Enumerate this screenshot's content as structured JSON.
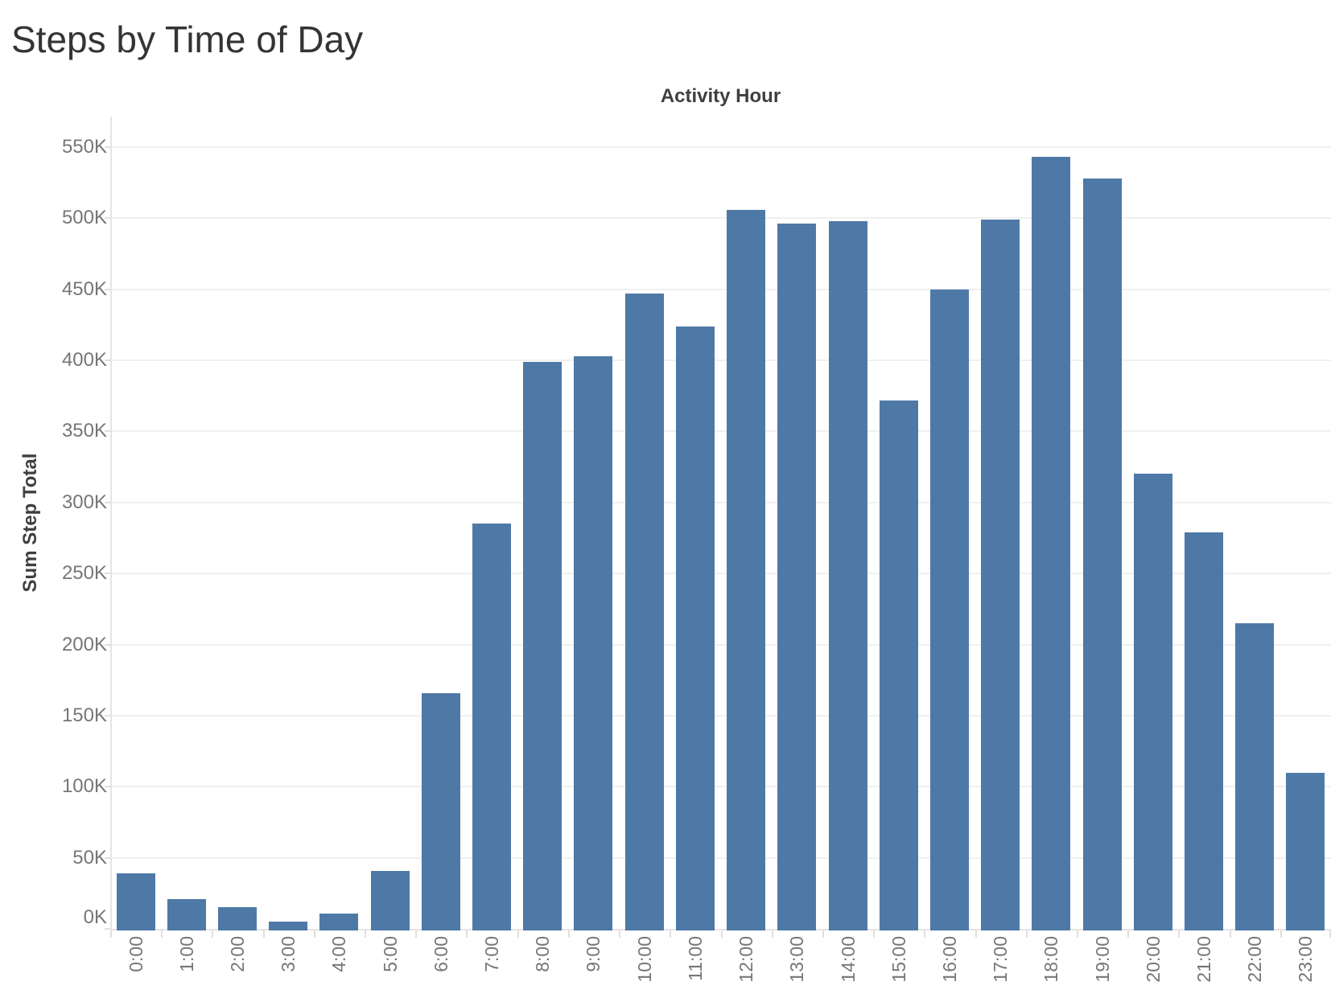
{
  "page": {
    "title": "Steps by Time of Day"
  },
  "chart_data": {
    "type": "bar",
    "title": "Steps by Time of Day",
    "xlabel": "Activity Hour",
    "ylabel": "Sum Step Total",
    "legend": "none",
    "grid": "horizontal",
    "ylim": [
      0,
      571500
    ],
    "categories": [
      "0:00",
      "1:00",
      "2:00",
      "3:00",
      "4:00",
      "5:00",
      "6:00",
      "7:00",
      "8:00",
      "9:00",
      "10:00",
      "11:00",
      "12:00",
      "13:00",
      "14:00",
      "15:00",
      "16:00",
      "17:00",
      "18:00",
      "19:00",
      "20:00",
      "21:00",
      "22:00",
      "23:00"
    ],
    "values": [
      39000,
      21000,
      15000,
      5000,
      11000,
      41000,
      166000,
      285000,
      399000,
      403000,
      447000,
      424000,
      506000,
      496000,
      498000,
      372000,
      450000,
      499000,
      543000,
      528000,
      320000,
      279000,
      215000,
      110000
    ],
    "y_ticks": [
      {
        "value": 0,
        "label": "0K"
      },
      {
        "value": 50000,
        "label": "50K"
      },
      {
        "value": 100000,
        "label": "100K"
      },
      {
        "value": 150000,
        "label": "150K"
      },
      {
        "value": 200000,
        "label": "200K"
      },
      {
        "value": 250000,
        "label": "250K"
      },
      {
        "value": 300000,
        "label": "300K"
      },
      {
        "value": 350000,
        "label": "350K"
      },
      {
        "value": 400000,
        "label": "400K"
      },
      {
        "value": 450000,
        "label": "450K"
      },
      {
        "value": 500000,
        "label": "500K"
      },
      {
        "value": 550000,
        "label": "550K"
      }
    ]
  },
  "colors": {
    "bar": "#4e79a7",
    "background": "#ffffff",
    "gridline": "#f0f0f0",
    "axis_line": "#e4e4e4",
    "tick": "#e0e0e0",
    "tick_label": "#767676",
    "axis_title": "#3f3f3f",
    "title": "#343434"
  }
}
